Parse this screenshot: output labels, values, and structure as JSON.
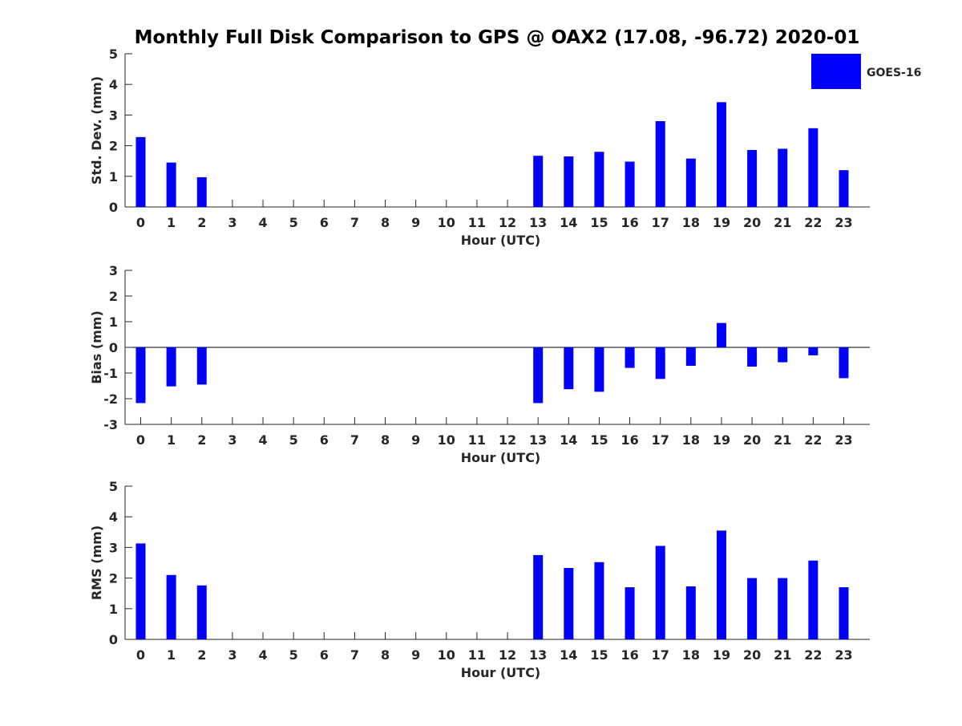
{
  "title": "Monthly Full Disk Comparison to GPS @ OAX2 (17.08, -96.72) 2020-01",
  "legend": {
    "label": "GOES-16",
    "color": "#0000ff",
    "placement": "top-right"
  },
  "chart_data": [
    {
      "type": "bar",
      "ylabel": "Std. Dev. (mm)",
      "xlabel": "Hour (UTC)",
      "categories": [
        "0",
        "1",
        "2",
        "3",
        "4",
        "5",
        "6",
        "7",
        "8",
        "9",
        "10",
        "11",
        "12",
        "13",
        "14",
        "15",
        "16",
        "17",
        "18",
        "19",
        "20",
        "21",
        "22",
        "23"
      ],
      "ylim": [
        0,
        5
      ],
      "yticks": [
        "0",
        "1",
        "2",
        "3",
        "4",
        "5"
      ],
      "series": [
        {
          "name": "GOES-16",
          "values": [
            2.28,
            1.45,
            0.97,
            null,
            null,
            null,
            null,
            null,
            null,
            null,
            null,
            null,
            null,
            1.67,
            1.65,
            1.8,
            1.48,
            2.8,
            1.58,
            3.42,
            1.86,
            1.9,
            2.57,
            1.2
          ]
        }
      ]
    },
    {
      "type": "bar",
      "ylabel": "Bias (mm)",
      "xlabel": "Hour (UTC)",
      "categories": [
        "0",
        "1",
        "2",
        "3",
        "4",
        "5",
        "6",
        "7",
        "8",
        "9",
        "10",
        "11",
        "12",
        "13",
        "14",
        "15",
        "16",
        "17",
        "18",
        "19",
        "20",
        "21",
        "22",
        "23"
      ],
      "ylim": [
        -3,
        3
      ],
      "yticks": [
        "-3",
        "-2",
        "-1",
        "0",
        "1",
        "2",
        "3"
      ],
      "series": [
        {
          "name": "GOES-16",
          "values": [
            -2.17,
            -1.52,
            -1.45,
            null,
            null,
            null,
            null,
            null,
            null,
            null,
            null,
            null,
            null,
            -2.17,
            -1.63,
            -1.73,
            -0.8,
            -1.23,
            -0.72,
            0.95,
            -0.75,
            -0.58,
            -0.31,
            -1.2
          ]
        }
      ]
    },
    {
      "type": "bar",
      "ylabel": "RMS (mm)",
      "xlabel": "Hour (UTC)",
      "categories": [
        "0",
        "1",
        "2",
        "3",
        "4",
        "5",
        "6",
        "7",
        "8",
        "9",
        "10",
        "11",
        "12",
        "13",
        "14",
        "15",
        "16",
        "17",
        "18",
        "19",
        "20",
        "21",
        "22",
        "23"
      ],
      "ylim": [
        0,
        5
      ],
      "yticks": [
        "0",
        "1",
        "2",
        "3",
        "4",
        "5"
      ],
      "series": [
        {
          "name": "GOES-16",
          "values": [
            3.13,
            2.1,
            1.76,
            null,
            null,
            null,
            null,
            null,
            null,
            null,
            null,
            null,
            null,
            2.75,
            2.33,
            2.52,
            1.7,
            3.05,
            1.73,
            3.55,
            2.0,
            2.0,
            2.57,
            1.7
          ]
        }
      ]
    }
  ]
}
